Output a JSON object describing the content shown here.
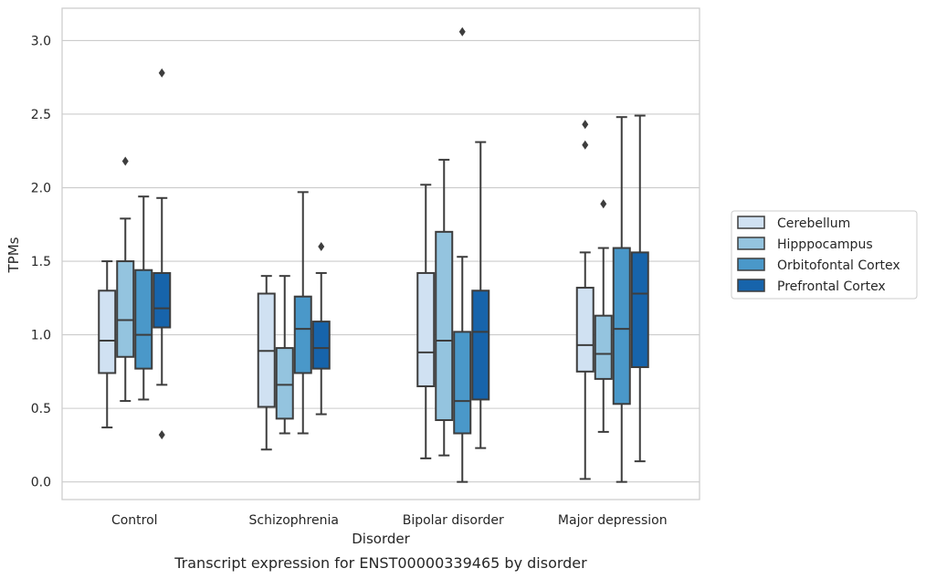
{
  "chart_data": {
    "type": "box",
    "caption": "Transcript expression for ENST00000339465 by disorder",
    "xlabel": "Disorder",
    "ylabel": "TPMs",
    "ylim": [
      -0.12,
      3.22
    ],
    "yticks": [
      0.0,
      0.5,
      1.0,
      1.5,
      2.0,
      2.5,
      3.0
    ],
    "ytick_labels": [
      "0.0",
      "0.5",
      "1.0",
      "1.5",
      "2.0",
      "2.5",
      "3.0"
    ],
    "grid": "horizontal",
    "legend_placement": "right",
    "categories": [
      "Control",
      "Schizophrenia",
      "Bipolar disorder",
      "Major depression"
    ],
    "series": [
      {
        "name": "Cerebellum",
        "color": "#d0e1f2",
        "boxes": [
          {
            "whisker_low": 0.37,
            "q1": 0.74,
            "median": 0.96,
            "q3": 1.3,
            "whisker_high": 1.5,
            "outliers": []
          },
          {
            "whisker_low": 0.22,
            "q1": 0.51,
            "median": 0.89,
            "q3": 1.28,
            "whisker_high": 1.4,
            "outliers": []
          },
          {
            "whisker_low": 0.16,
            "q1": 0.65,
            "median": 0.88,
            "q3": 1.42,
            "whisker_high": 2.02,
            "outliers": []
          },
          {
            "whisker_low": 0.02,
            "q1": 0.75,
            "median": 0.93,
            "q3": 1.32,
            "whisker_high": 1.56,
            "outliers": [
              2.43,
              2.29
            ]
          }
        ]
      },
      {
        "name": "Hipppocampus",
        "color": "#94c4df",
        "boxes": [
          {
            "whisker_low": 0.55,
            "q1": 0.85,
            "median": 1.1,
            "q3": 1.5,
            "whisker_high": 1.79,
            "outliers": [
              2.18
            ]
          },
          {
            "whisker_low": 0.33,
            "q1": 0.43,
            "median": 0.66,
            "q3": 0.91,
            "whisker_high": 1.4,
            "outliers": []
          },
          {
            "whisker_low": 0.18,
            "q1": 0.42,
            "median": 0.96,
            "q3": 1.7,
            "whisker_high": 2.19,
            "outliers": []
          },
          {
            "whisker_low": 0.34,
            "q1": 0.7,
            "median": 0.87,
            "q3": 1.13,
            "whisker_high": 1.59,
            "outliers": [
              1.89
            ]
          }
        ]
      },
      {
        "name": "Orbitofontal Cortex",
        "color": "#4a98c9",
        "boxes": [
          {
            "whisker_low": 0.56,
            "q1": 0.77,
            "median": 1.0,
            "q3": 1.44,
            "whisker_high": 1.94,
            "outliers": []
          },
          {
            "whisker_low": 0.33,
            "q1": 0.74,
            "median": 1.04,
            "q3": 1.26,
            "whisker_high": 1.97,
            "outliers": []
          },
          {
            "whisker_low": 0.0,
            "q1": 0.33,
            "median": 0.55,
            "q3": 1.02,
            "whisker_high": 1.53,
            "outliers": [
              3.06
            ]
          },
          {
            "whisker_low": 0.0,
            "q1": 0.53,
            "median": 1.04,
            "q3": 1.59,
            "whisker_high": 2.48,
            "outliers": []
          }
        ]
      },
      {
        "name": "Prefrontal Cortex",
        "color": "#1764ab",
        "boxes": [
          {
            "whisker_low": 0.66,
            "q1": 1.05,
            "median": 1.18,
            "q3": 1.42,
            "whisker_high": 1.93,
            "outliers": [
              2.78,
              0.32
            ]
          },
          {
            "whisker_low": 0.46,
            "q1": 0.77,
            "median": 0.91,
            "q3": 1.09,
            "whisker_high": 1.42,
            "outliers": [
              1.6
            ]
          },
          {
            "whisker_low": 0.23,
            "q1": 0.56,
            "median": 1.02,
            "q3": 1.3,
            "whisker_high": 2.31,
            "outliers": []
          },
          {
            "whisker_low": 0.14,
            "q1": 0.78,
            "median": 1.28,
            "q3": 1.56,
            "whisker_high": 2.49,
            "outliers": []
          }
        ]
      }
    ]
  }
}
